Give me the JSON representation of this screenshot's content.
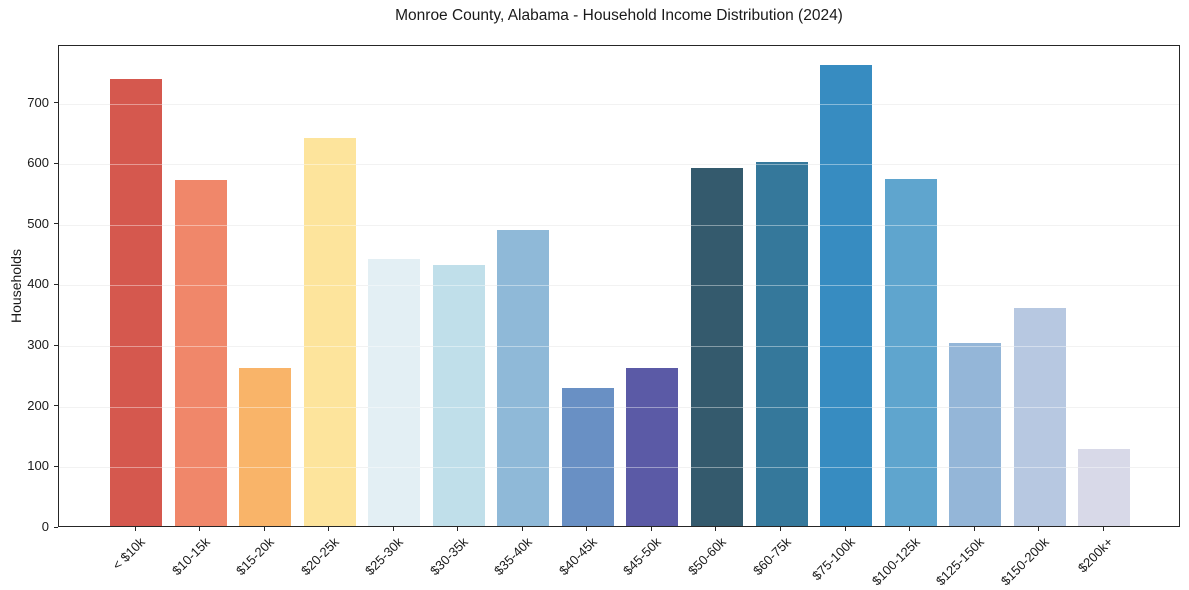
{
  "chart_data": {
    "type": "bar",
    "title": "Monroe County, Alabama - Household Income Distribution (2024)",
    "xlabel": "",
    "ylabel": "Households",
    "categories": [
      "< $10k",
      "$10-15k",
      "$15-20k",
      "$20-25k",
      "$25-30k",
      "$30-35k",
      "$35-40k",
      "$40-45k",
      "$45-50k",
      "$50-60k",
      "$60-75k",
      "$75-100k",
      "$100-125k",
      "$125-150k",
      "$150-200k",
      "$200k+"
    ],
    "values": [
      738,
      570,
      260,
      640,
      440,
      430,
      488,
      228,
      260,
      590,
      600,
      760,
      572,
      302,
      360,
      127
    ],
    "bar_colors": [
      "#d5584e",
      "#f0876a",
      "#f9b469",
      "#fde49c",
      "#e3eff4",
      "#c0dfea",
      "#8fb9d8",
      "#6990c4",
      "#5b5aa6",
      "#345a6d",
      "#35789b",
      "#378cc1",
      "#5fa5ce",
      "#94b6d8",
      "#b7c8e1",
      "#d8d9e8"
    ],
    "yticks": [
      0,
      100,
      200,
      300,
      400,
      500,
      600,
      700
    ],
    "ylim": [
      0,
      795
    ],
    "grid": "horizontal",
    "grid_color": "#e9e9e9",
    "spine_color": "#262626",
    "text_color": "#1a1a1a",
    "background": "#ffffff",
    "legend": "none",
    "x_tick_rotation_deg": 45
  }
}
